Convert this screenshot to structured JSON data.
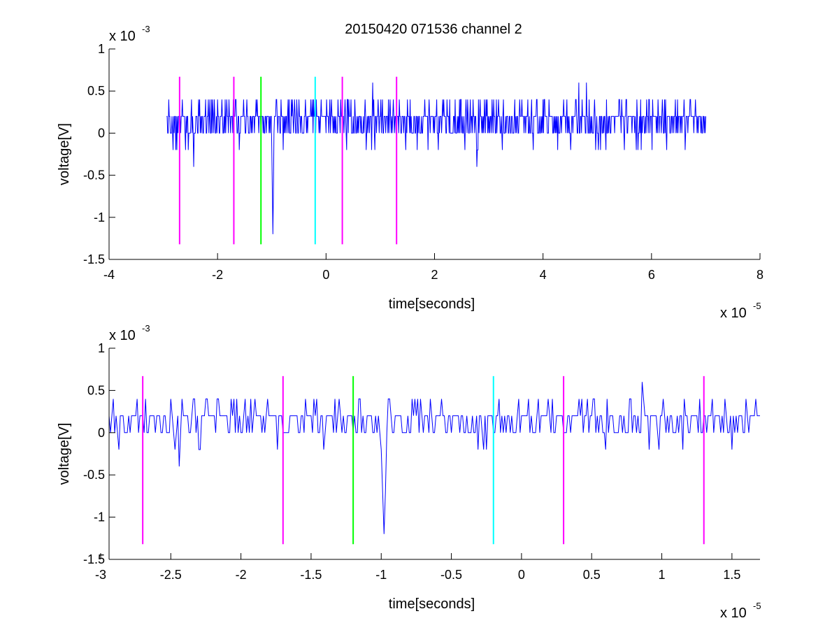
{
  "figure": {
    "title": "20150420 071536 channel 2"
  },
  "colors": {
    "signal": "#0000ff",
    "marker_magenta": "#ff00ff",
    "marker_green": "#00ff00",
    "marker_cyan": "#00ffff",
    "axes": "#000000"
  },
  "chart_data": [
    {
      "type": "line",
      "xlabel": "time[seconds]",
      "ylabel": "voltage[V]",
      "xlim": [
        -4e-05,
        8e-05
      ],
      "ylim": [
        -0.0015,
        0.001
      ],
      "x_ticks": [
        -4,
        -2,
        0,
        2,
        4,
        6,
        8
      ],
      "x_tick_labels": [
        "-4",
        "-2",
        "0",
        "2",
        "4",
        "6",
        "8"
      ],
      "y_ticks": [
        -1.5,
        -1,
        -0.5,
        0,
        0.5,
        1
      ],
      "y_tick_labels": [
        "-1.5",
        "-1",
        "-0.5",
        "0",
        "0.5",
        "1"
      ],
      "x_exponent": {
        "base": "x 10",
        "power": "-5"
      },
      "y_exponent": {
        "base": "x 10",
        "power": "-3"
      },
      "grid": false,
      "series": [
        {
          "start_x": -2.94e-05,
          "end_x": 7e-05,
          "levels_mV": [
            -0.4,
            -0.2,
            0,
            0.2,
            0.4,
            0.6
          ],
          "dips": [
            {
              "x": -2.44e-05,
              "y": -0.0004
            },
            {
              "x": -9.8e-06,
              "y": -0.0012
            },
            {
              "x": 2.78e-05,
              "y": -0.0004
            }
          ],
          "peaks": [
            {
              "x": 8.6e-06,
              "y": 0.0006
            },
            {
              "x": 4.66e-05,
              "y": 0.0006
            },
            {
              "x": 4.8e-05,
              "y": 0.0006
            }
          ]
        }
      ],
      "markers": [
        {
          "x": -2.7e-05,
          "color": "magenta",
          "y_top": 0.00067,
          "y_bottom": -0.00132
        },
        {
          "x": -1.7e-05,
          "color": "magenta",
          "y_top": 0.00067,
          "y_bottom": -0.00132
        },
        {
          "x": -1.2e-05,
          "color": "green",
          "y_top": 0.00067,
          "y_bottom": -0.00132
        },
        {
          "x": -2e-06,
          "color": "cyan",
          "y_top": 0.00067,
          "y_bottom": -0.00132
        },
        {
          "x": 3e-06,
          "color": "magenta",
          "y_top": 0.00067,
          "y_bottom": -0.00132
        },
        {
          "x": 1.3e-05,
          "color": "magenta",
          "y_top": 0.00067,
          "y_bottom": -0.00132
        }
      ]
    },
    {
      "type": "line",
      "xlabel": "time[seconds]",
      "ylabel": "voltage[V]",
      "xlim": [
        -2.94e-05,
        1.7e-05
      ],
      "ylim": [
        -0.0015,
        0.001
      ],
      "x_ticks": [
        -3,
        -2.5,
        -2,
        -1.5,
        -1,
        -0.5,
        0,
        0.5,
        1,
        1.5
      ],
      "x_tick_labels": [
        "-3",
        "-2.5",
        "-2",
        "-1.5",
        "-1",
        "-0.5",
        "0",
        "0.5",
        "1",
        "1.5"
      ],
      "y_ticks": [
        -1.5,
        -1,
        -0.5,
        0,
        0.5,
        1
      ],
      "y_tick_labels": [
        "-1.5",
        "-1",
        "-0.5",
        "0",
        "0.5",
        "1"
      ],
      "x_exponent": {
        "base": "x 10",
        "power": "-5"
      },
      "y_exponent": {
        "base": "x 10",
        "power": "-3"
      },
      "grid": false,
      "series": [
        {
          "start_x": -2.94e-05,
          "end_x": 1.7e-05,
          "levels_mV": [
            -0.4,
            -0.2,
            0,
            0.2,
            0.4,
            0.6
          ],
          "dips": [
            {
              "x": -2.44e-05,
              "y": -0.0004
            },
            {
              "x": -9.8e-06,
              "y": -0.0012
            },
            {
              "x": 1.5e-05,
              "y": -0.0002
            }
          ],
          "peaks": [
            {
              "x": 8.6e-06,
              "y": 0.0006
            },
            {
              "x": 1.6e-05,
              "y": 0.0004
            }
          ]
        }
      ],
      "markers": [
        {
          "x": -2.7e-05,
          "color": "magenta",
          "y_top": 0.00067,
          "y_bottom": -0.00132
        },
        {
          "x": -1.7e-05,
          "color": "magenta",
          "y_top": 0.00067,
          "y_bottom": -0.00132
        },
        {
          "x": -1.2e-05,
          "color": "green",
          "y_top": 0.00067,
          "y_bottom": -0.00132
        },
        {
          "x": -2e-06,
          "color": "cyan",
          "y_top": 0.00067,
          "y_bottom": -0.00132
        },
        {
          "x": 3e-06,
          "color": "magenta",
          "y_top": 0.00067,
          "y_bottom": -0.00132
        },
        {
          "x": 1.3e-05,
          "color": "magenta",
          "y_top": 0.00067,
          "y_bottom": -0.00132
        }
      ]
    }
  ]
}
